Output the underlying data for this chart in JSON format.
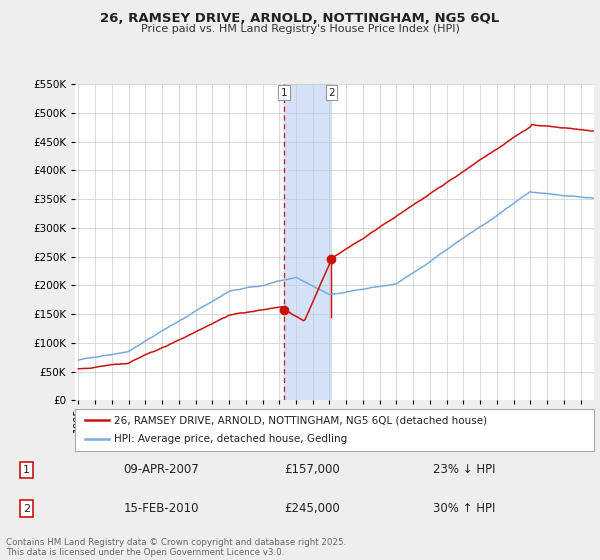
{
  "title": "26, RAMSEY DRIVE, ARNOLD, NOTTINGHAM, NG5 6QL",
  "subtitle": "Price paid vs. HM Land Registry's House Price Index (HPI)",
  "bg_color": "#eeeeee",
  "plot_bg": "#ffffff",
  "hpi_color": "#7aaadd",
  "price_color": "#cc1111",
  "shade_color": "#ccddf5",
  "ylim": [
    0,
    550000
  ],
  "yticks": [
    0,
    50000,
    100000,
    150000,
    200000,
    250000,
    300000,
    350000,
    400000,
    450000,
    500000,
    550000
  ],
  "xmin": 1994.8,
  "xmax": 2025.8,
  "sale1_x": 2007.27,
  "sale1_y": 157000,
  "sale2_x": 2010.12,
  "sale2_y": 245000,
  "legend_label1": "26, RAMSEY DRIVE, ARNOLD, NOTTINGHAM, NG5 6QL (detached house)",
  "legend_label2": "HPI: Average price, detached house, Gedling",
  "table_row1": [
    "1",
    "09-APR-2007",
    "£157,000",
    "23% ↓ HPI"
  ],
  "table_row2": [
    "2",
    "15-FEB-2010",
    "£245,000",
    "30% ↑ HPI"
  ],
  "footer": "Contains HM Land Registry data © Crown copyright and database right 2025.\nThis data is licensed under the Open Government Licence v3.0."
}
